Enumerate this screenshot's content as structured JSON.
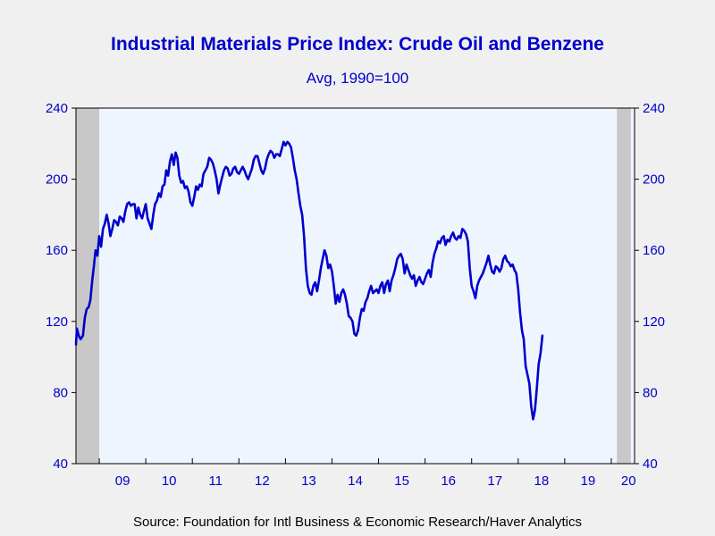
{
  "title": "Industrial Materials Price Index: Crude Oil and Benzene",
  "subtitle": "Avg, 1990=100",
  "source": "Source:  Foundation for Intl Business & Economic Research/Haver Analytics",
  "colors": {
    "line": "#0000cc",
    "plot_bg": "#eef5ff",
    "recession": "#c8c8c8",
    "text": "#0000cc"
  },
  "chart_data": {
    "type": "line",
    "title": "Industrial Materials Price Index: Crude Oil and Benzene",
    "subtitle": "Avg, 1990=100",
    "xlabel": "",
    "ylabel": "",
    "ylim": [
      40,
      240
    ],
    "yticks": [
      40,
      80,
      120,
      160,
      200,
      240
    ],
    "ytick_labels": [
      "40",
      "80",
      "120",
      "160",
      "200",
      "240"
    ],
    "xlim": [
      2008.5,
      2020.5
    ],
    "xtick_labels": [
      {
        "label": "09",
        "x": 2009.5
      },
      {
        "label": "10",
        "x": 2010.5
      },
      {
        "label": "11",
        "x": 2011.5
      },
      {
        "label": "12",
        "x": 2012.5
      },
      {
        "label": "13",
        "x": 2013.5
      },
      {
        "label": "14",
        "x": 2014.5
      },
      {
        "label": "15",
        "x": 2015.5
      },
      {
        "label": "16",
        "x": 2016.5
      },
      {
        "label": "17",
        "x": 2017.5
      },
      {
        "label": "18",
        "x": 2018.5
      },
      {
        "label": "19",
        "x": 2019.5
      },
      {
        "label": "20",
        "x": 2020.37
      }
    ],
    "recessions": [
      [
        2008.5,
        2009.0
      ],
      [
        2020.12,
        2020.42
      ]
    ],
    "grid": false,
    "series": [
      {
        "points": [
          [
            2008.5,
            107
          ],
          [
            2008.52,
            116
          ],
          [
            2008.56,
            112
          ],
          [
            2008.6,
            110
          ],
          [
            2008.65,
            112
          ],
          [
            2008.69,
            122
          ],
          [
            2008.73,
            127
          ],
          [
            2008.77,
            128
          ],
          [
            2008.81,
            132
          ],
          [
            2008.85,
            143
          ],
          [
            2008.88,
            150
          ],
          [
            2008.92,
            160
          ],
          [
            2008.96,
            157
          ],
          [
            2009.0,
            168
          ],
          [
            2009.04,
            162
          ],
          [
            2009.08,
            172
          ],
          [
            2009.12,
            175
          ],
          [
            2009.16,
            180
          ],
          [
            2009.2,
            175
          ],
          [
            2009.24,
            168
          ],
          [
            2009.28,
            172
          ],
          [
            2009.32,
            177
          ],
          [
            2009.36,
            176
          ],
          [
            2009.4,
            174
          ],
          [
            2009.44,
            179
          ],
          [
            2009.48,
            178
          ],
          [
            2009.52,
            176
          ],
          [
            2009.56,
            182
          ],
          [
            2009.6,
            186
          ],
          [
            2009.64,
            187
          ],
          [
            2009.68,
            185
          ],
          [
            2009.72,
            186
          ],
          [
            2009.76,
            186
          ],
          [
            2009.8,
            178
          ],
          [
            2009.84,
            184
          ],
          [
            2009.88,
            180
          ],
          [
            2009.92,
            178
          ],
          [
            2009.96,
            182
          ],
          [
            2010.0,
            186
          ],
          [
            2010.04,
            178
          ],
          [
            2010.08,
            175
          ],
          [
            2010.12,
            172
          ],
          [
            2010.16,
            180
          ],
          [
            2010.2,
            186
          ],
          [
            2010.24,
            188
          ],
          [
            2010.28,
            192
          ],
          [
            2010.32,
            190
          ],
          [
            2010.36,
            196
          ],
          [
            2010.4,
            197
          ],
          [
            2010.44,
            205
          ],
          [
            2010.48,
            202
          ],
          [
            2010.52,
            210
          ],
          [
            2010.56,
            214
          ],
          [
            2010.6,
            208
          ],
          [
            2010.64,
            215
          ],
          [
            2010.68,
            212
          ],
          [
            2010.72,
            202
          ],
          [
            2010.76,
            198
          ],
          [
            2010.8,
            199
          ],
          [
            2010.84,
            195
          ],
          [
            2010.88,
            196
          ],
          [
            2010.92,
            193
          ],
          [
            2010.96,
            187
          ],
          [
            2011.0,
            185
          ],
          [
            2011.04,
            190
          ],
          [
            2011.08,
            196
          ],
          [
            2011.12,
            194
          ],
          [
            2011.16,
            197
          ],
          [
            2011.2,
            196
          ],
          [
            2011.24,
            203
          ],
          [
            2011.28,
            205
          ],
          [
            2011.32,
            207
          ],
          [
            2011.36,
            212
          ],
          [
            2011.4,
            211
          ],
          [
            2011.44,
            209
          ],
          [
            2011.48,
            205
          ],
          [
            2011.52,
            200
          ],
          [
            2011.56,
            192
          ],
          [
            2011.6,
            197
          ],
          [
            2011.64,
            201
          ],
          [
            2011.68,
            205
          ],
          [
            2011.72,
            207
          ],
          [
            2011.76,
            206
          ],
          [
            2011.8,
            202
          ],
          [
            2011.84,
            203
          ],
          [
            2011.88,
            206
          ],
          [
            2011.92,
            207
          ],
          [
            2011.96,
            204
          ],
          [
            2012.0,
            203
          ],
          [
            2012.04,
            205
          ],
          [
            2012.08,
            207
          ],
          [
            2012.12,
            205
          ],
          [
            2012.16,
            202
          ],
          [
            2012.2,
            200
          ],
          [
            2012.24,
            203
          ],
          [
            2012.28,
            206
          ],
          [
            2012.32,
            211
          ],
          [
            2012.36,
            213
          ],
          [
            2012.4,
            213
          ],
          [
            2012.44,
            209
          ],
          [
            2012.48,
            205
          ],
          [
            2012.52,
            203
          ],
          [
            2012.56,
            206
          ],
          [
            2012.6,
            211
          ],
          [
            2012.64,
            214
          ],
          [
            2012.68,
            216
          ],
          [
            2012.72,
            215
          ],
          [
            2012.76,
            212
          ],
          [
            2012.8,
            214
          ],
          [
            2012.84,
            214
          ],
          [
            2012.88,
            213
          ],
          [
            2012.92,
            217
          ],
          [
            2012.96,
            221
          ],
          [
            2013.0,
            219
          ],
          [
            2013.04,
            221
          ],
          [
            2013.08,
            220
          ],
          [
            2013.12,
            218
          ],
          [
            2013.16,
            212
          ],
          [
            2013.2,
            205
          ],
          [
            2013.24,
            200
          ],
          [
            2013.28,
            192
          ],
          [
            2013.32,
            185
          ],
          [
            2013.36,
            180
          ],
          [
            2013.4,
            168
          ],
          [
            2013.44,
            150
          ],
          [
            2013.48,
            140
          ],
          [
            2013.52,
            136
          ],
          [
            2013.56,
            135
          ],
          [
            2013.6,
            140
          ],
          [
            2013.64,
            142
          ],
          [
            2013.68,
            137
          ],
          [
            2013.72,
            143
          ],
          [
            2013.76,
            150
          ],
          [
            2013.8,
            155
          ],
          [
            2013.84,
            160
          ],
          [
            2013.88,
            157
          ],
          [
            2013.92,
            150
          ],
          [
            2013.96,
            152
          ],
          [
            2014.0,
            148
          ],
          [
            2014.04,
            140
          ],
          [
            2014.08,
            130
          ],
          [
            2014.12,
            135
          ],
          [
            2014.16,
            131
          ],
          [
            2014.2,
            136
          ],
          [
            2014.24,
            138
          ],
          [
            2014.28,
            135
          ],
          [
            2014.32,
            130
          ],
          [
            2014.36,
            123
          ],
          [
            2014.4,
            122
          ],
          [
            2014.44,
            120
          ],
          [
            2014.48,
            113
          ],
          [
            2014.52,
            112
          ],
          [
            2014.56,
            115
          ],
          [
            2014.6,
            122
          ],
          [
            2014.64,
            127
          ],
          [
            2014.68,
            126
          ],
          [
            2014.72,
            131
          ],
          [
            2014.76,
            133
          ],
          [
            2014.8,
            137
          ],
          [
            2014.84,
            140
          ],
          [
            2014.88,
            136
          ],
          [
            2014.92,
            137
          ],
          [
            2014.96,
            138
          ],
          [
            2015.0,
            136
          ],
          [
            2015.04,
            140
          ],
          [
            2015.08,
            142
          ],
          [
            2015.12,
            136
          ],
          [
            2015.16,
            141
          ],
          [
            2015.2,
            143
          ],
          [
            2015.24,
            137
          ],
          [
            2015.28,
            143
          ],
          [
            2015.32,
            146
          ],
          [
            2015.36,
            150
          ],
          [
            2015.4,
            155
          ],
          [
            2015.44,
            157
          ],
          [
            2015.48,
            158
          ],
          [
            2015.52,
            155
          ],
          [
            2015.56,
            147
          ],
          [
            2015.6,
            152
          ],
          [
            2015.64,
            149
          ],
          [
            2015.68,
            146
          ],
          [
            2015.72,
            144
          ],
          [
            2015.76,
            146
          ],
          [
            2015.8,
            140
          ],
          [
            2015.84,
            143
          ],
          [
            2015.88,
            145
          ],
          [
            2015.92,
            142
          ],
          [
            2015.96,
            141
          ],
          [
            2016.0,
            144
          ],
          [
            2016.04,
            147
          ],
          [
            2016.08,
            149
          ],
          [
            2016.12,
            145
          ],
          [
            2016.16,
            153
          ],
          [
            2016.2,
            158
          ],
          [
            2016.24,
            161
          ],
          [
            2016.28,
            165
          ],
          [
            2016.32,
            164
          ],
          [
            2016.36,
            167
          ],
          [
            2016.4,
            168
          ],
          [
            2016.44,
            163
          ],
          [
            2016.48,
            166
          ],
          [
            2016.52,
            165
          ],
          [
            2016.56,
            168
          ],
          [
            2016.6,
            170
          ],
          [
            2016.64,
            167
          ],
          [
            2016.68,
            166
          ],
          [
            2016.72,
            168
          ],
          [
            2016.76,
            167
          ],
          [
            2016.8,
            172
          ],
          [
            2016.84,
            171
          ],
          [
            2016.88,
            169
          ],
          [
            2016.92,
            165
          ],
          [
            2016.96,
            150
          ],
          [
            2017.0,
            140
          ],
          [
            2017.04,
            137
          ],
          [
            2017.08,
            133
          ],
          [
            2017.12,
            140
          ],
          [
            2017.16,
            143
          ],
          [
            2017.2,
            145
          ],
          [
            2017.24,
            147
          ],
          [
            2017.28,
            150
          ],
          [
            2017.32,
            153
          ],
          [
            2017.36,
            157
          ],
          [
            2017.4,
            152
          ],
          [
            2017.44,
            148
          ],
          [
            2017.48,
            147
          ],
          [
            2017.52,
            151
          ],
          [
            2017.56,
            150
          ],
          [
            2017.6,
            148
          ],
          [
            2017.64,
            150
          ],
          [
            2017.68,
            155
          ],
          [
            2017.72,
            157
          ],
          [
            2017.76,
            154
          ],
          [
            2017.8,
            153
          ],
          [
            2017.84,
            151
          ],
          [
            2017.88,
            152
          ],
          [
            2017.92,
            149
          ],
          [
            2017.96,
            147
          ],
          [
            2018.0,
            138
          ],
          [
            2018.04,
            125
          ],
          [
            2018.08,
            115
          ],
          [
            2018.12,
            110
          ],
          [
            2018.16,
            95
          ],
          [
            2018.2,
            90
          ],
          [
            2018.24,
            85
          ],
          [
            2018.28,
            72
          ],
          [
            2018.32,
            65
          ],
          [
            2018.36,
            70
          ],
          [
            2018.4,
            82
          ],
          [
            2018.44,
            96
          ],
          [
            2018.48,
            102
          ],
          [
            2018.52,
            112
          ]
        ]
      }
    ]
  }
}
